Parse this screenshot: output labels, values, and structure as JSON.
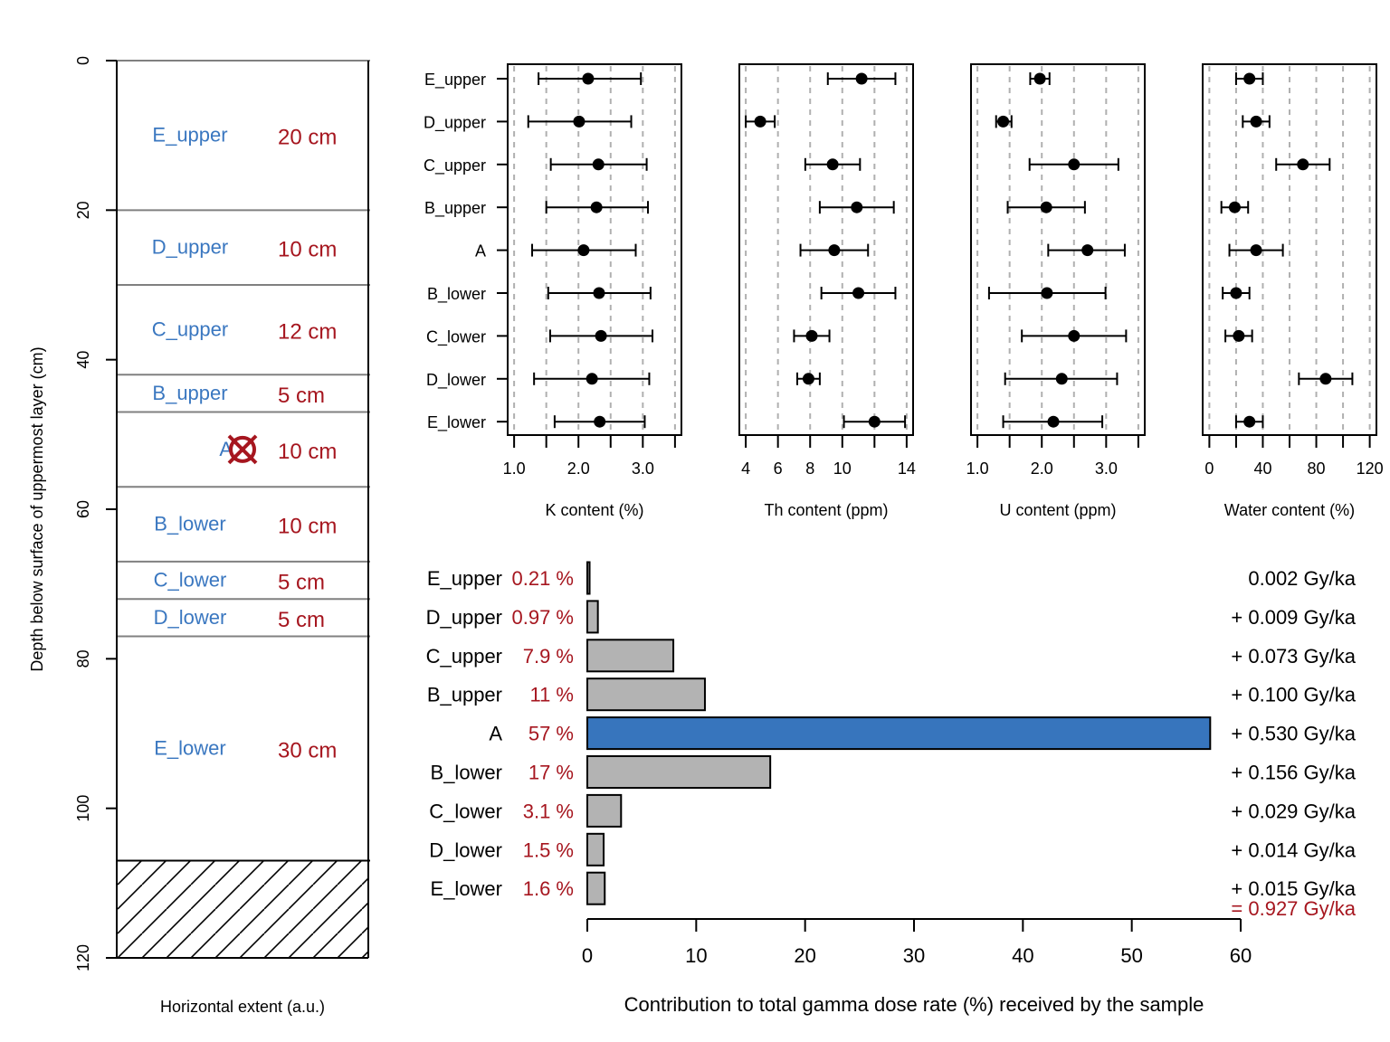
{
  "colors": {
    "layer_name": "#3a77c0",
    "thickness": "#a6161f",
    "bar_default": "#b3b3b3",
    "bar_highlight": "#3775bd",
    "marker": "#a6161f",
    "total": "#a6161f"
  },
  "chart_data": [
    {
      "id": "profile",
      "type": "diagram",
      "title": "",
      "xlabel": "Horizontal extent (a.u.)",
      "ylabel": "Depth below surface of uppermost layer (cm)",
      "ylim": [
        0,
        120
      ],
      "yticks": [
        "0",
        "20",
        "40",
        "60",
        "80",
        "100",
        "120"
      ],
      "ytick_values": [
        0,
        20,
        40,
        60,
        80,
        100,
        120
      ],
      "layers": [
        {
          "name": "E_upper",
          "thickness_label": "20 cm",
          "top": 0,
          "bottom": 20
        },
        {
          "name": "D_upper",
          "thickness_label": "10 cm",
          "top": 20,
          "bottom": 30
        },
        {
          "name": "C_upper",
          "thickness_label": "12 cm",
          "top": 30,
          "bottom": 42
        },
        {
          "name": "B_upper",
          "thickness_label": "5 cm",
          "top": 42,
          "bottom": 47
        },
        {
          "name": "A",
          "thickness_label": "10 cm",
          "top": 47,
          "bottom": 57,
          "sample": true
        },
        {
          "name": "B_lower",
          "thickness_label": "10 cm",
          "top": 57,
          "bottom": 67
        },
        {
          "name": "C_lower",
          "thickness_label": "5 cm",
          "top": 67,
          "bottom": 72
        },
        {
          "name": "D_lower",
          "thickness_label": "5 cm",
          "top": 72,
          "bottom": 77
        },
        {
          "name": "E_lower",
          "thickness_label": "30 cm",
          "top": 77,
          "bottom": 107
        }
      ],
      "bedrock": {
        "top": 107,
        "bottom": 120,
        "pattern": "hatched"
      },
      "sample_marker": {
        "layer": "A",
        "depth": 52,
        "icon": "circle-cross-marker"
      }
    },
    {
      "id": "k",
      "type": "scatter",
      "orientation": "horizontal-errorbar",
      "xlabel": "K content (%)",
      "xlim": [
        0.9,
        3.6
      ],
      "xticks": [
        "1.0",
        "2.0",
        "3.0"
      ],
      "xtick_values": [
        1.0,
        2.0,
        3.0
      ],
      "minor_ticks": [
        1.5,
        2.5,
        3.5
      ],
      "grid": true,
      "categories": [
        "E_upper",
        "D_upper",
        "C_upper",
        "B_upper",
        "A",
        "B_lower",
        "C_lower",
        "D_lower",
        "E_lower"
      ],
      "values": [
        2.15,
        2.01,
        2.31,
        2.28,
        2.08,
        2.32,
        2.35,
        2.21,
        2.33
      ],
      "err_low": [
        1.38,
        1.22,
        1.57,
        1.5,
        1.28,
        1.53,
        1.56,
        1.31,
        1.63
      ],
      "err_high": [
        2.97,
        2.82,
        3.06,
        3.08,
        2.89,
        3.12,
        3.15,
        3.1,
        3.03
      ]
    },
    {
      "id": "th",
      "type": "scatter",
      "orientation": "horizontal-errorbar",
      "xlabel": "Th content (ppm)",
      "xlim": [
        3.6,
        14.4
      ],
      "xticks": [
        "4",
        "6",
        "8",
        "10",
        "14"
      ],
      "xtick_values": [
        4,
        6,
        8,
        10,
        14
      ],
      "minor_ticks": [
        12
      ],
      "grid": true,
      "categories": [
        "E_upper",
        "D_upper",
        "C_upper",
        "B_upper",
        "A",
        "B_lower",
        "C_lower",
        "D_lower",
        "E_lower"
      ],
      "values": [
        11.2,
        4.9,
        9.4,
        10.9,
        9.5,
        11.0,
        8.1,
        7.9,
        12.0
      ],
      "err_low": [
        9.1,
        4.0,
        7.7,
        8.6,
        7.4,
        8.7,
        7.0,
        7.2,
        10.1
      ],
      "err_high": [
        13.3,
        5.8,
        11.1,
        13.2,
        11.6,
        13.3,
        9.2,
        8.6,
        13.9
      ]
    },
    {
      "id": "u",
      "type": "scatter",
      "orientation": "horizontal-errorbar",
      "xlabel": "U content (ppm)",
      "xlim": [
        0.9,
        3.6
      ],
      "xticks": [
        "1.0",
        "2.0",
        "3.0"
      ],
      "xtick_values": [
        1.0,
        2.0,
        3.0
      ],
      "minor_ticks": [
        1.5,
        2.5,
        3.5
      ],
      "grid": true,
      "categories": [
        "E_upper",
        "D_upper",
        "C_upper",
        "B_upper",
        "A",
        "B_lower",
        "C_lower",
        "D_lower",
        "E_lower"
      ],
      "values": [
        1.97,
        1.4,
        2.5,
        2.07,
        2.71,
        2.08,
        2.5,
        2.31,
        2.18
      ],
      "err_low": [
        1.82,
        1.29,
        1.81,
        1.47,
        2.1,
        1.18,
        1.69,
        1.43,
        1.4
      ],
      "err_high": [
        2.12,
        1.53,
        3.19,
        2.67,
        3.29,
        2.99,
        3.31,
        3.17,
        2.94
      ]
    },
    {
      "id": "water",
      "type": "scatter",
      "orientation": "horizontal-errorbar",
      "xlabel": "Water content (%)",
      "xlim": [
        -5,
        125
      ],
      "xticks": [
        "0",
        "40",
        "80",
        "120"
      ],
      "xtick_values": [
        0,
        40,
        80,
        120
      ],
      "minor_ticks": [
        20,
        60,
        100
      ],
      "grid": true,
      "categories": [
        "E_upper",
        "D_upper",
        "C_upper",
        "B_upper",
        "A",
        "B_lower",
        "C_lower",
        "D_lower",
        "E_lower"
      ],
      "values": [
        30,
        35,
        70,
        19,
        35,
        20,
        22,
        87,
        30
      ],
      "err_low": [
        20,
        25,
        50,
        9,
        15,
        10,
        12,
        67,
        20
      ],
      "err_high": [
        40,
        45,
        90,
        29,
        55,
        30,
        32,
        107,
        40
      ]
    },
    {
      "id": "contribution",
      "type": "bar",
      "orientation": "horizontal",
      "xlabel": "Contribution to total gamma dose rate (%) received by the sample",
      "xlim": [
        0,
        60
      ],
      "xticks": [
        "0",
        "10",
        "20",
        "30",
        "40",
        "50",
        "60"
      ],
      "xtick_values": [
        0,
        10,
        20,
        30,
        40,
        50,
        60
      ],
      "categories": [
        "E_upper",
        "D_upper",
        "C_upper",
        "B_upper",
        "A",
        "B_lower",
        "C_lower",
        "D_lower",
        "E_lower"
      ],
      "values": [
        0.21,
        0.97,
        7.9,
        10.8,
        57.2,
        16.8,
        3.1,
        1.5,
        1.6
      ],
      "percent_labels": [
        "0.21 %",
        "0.97 %",
        "7.9 %",
        "11 %",
        "57 %",
        "17 %",
        "3.1 %",
        "1.5 %",
        "1.6 %"
      ],
      "dose_labels": [
        "0.002 Gy/ka",
        "+ 0.009 Gy/ka",
        "+ 0.073 Gy/ka",
        "+ 0.100 Gy/ka",
        "+ 0.530 Gy/ka",
        "+ 0.156 Gy/ka",
        "+ 0.029 Gy/ka",
        "+ 0.014 Gy/ka",
        "+ 0.015 Gy/ka"
      ],
      "dose_values_gy_ka": [
        0.002,
        0.009,
        0.073,
        0.1,
        0.53,
        0.156,
        0.029,
        0.014,
        0.015
      ],
      "highlight": "A",
      "total_label": "= 0.927 Gy/ka",
      "total_gy_ka": 0.927
    }
  ]
}
